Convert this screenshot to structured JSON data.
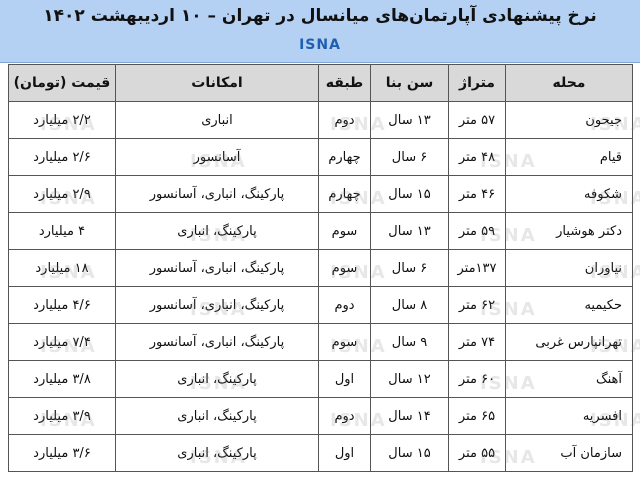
{
  "header": {
    "title": "نرخ پیشنهادی آپارتمان‌های میانسال در تهران – ۱۰ اردیبهشت ۱۴۰۲",
    "source": "ISNA"
  },
  "watermark": "ISNA",
  "table": {
    "columns": [
      "محله",
      "متراژ",
      "سن بنا",
      "طبقه",
      "امکانات",
      "قیمت (تومان)"
    ],
    "rows": [
      [
        "جیحون",
        "۵۷ متر",
        "۱۳ سال",
        "دوم",
        "انباری",
        "۲/۲ میلیارد"
      ],
      [
        "قیام",
        "۴۸ متر",
        "۶ سال",
        "چهارم",
        "آسانسور",
        "۲/۶ میلیارد"
      ],
      [
        "شکوفه",
        "۴۶ متر",
        "۱۵ سال",
        "چهارم",
        "پارکینگ، انباری، آسانسور",
        "۲/۹ میلیارد"
      ],
      [
        "دکتر هوشیار",
        "۵۹ متر",
        "۱۳ سال",
        "سوم",
        "پارکینگ، انباری",
        "۴ میلیارد"
      ],
      [
        "نیاوران",
        "۱۳۷متر",
        "۶ سال",
        "سوم",
        "پارکینگ، انباری، آسانسور",
        "۱۸ میلیارد"
      ],
      [
        "حکیمیه",
        "۶۲ متر",
        "۸ سال",
        "دوم",
        "پارکینگ، انباری، آسانسور",
        "۴/۶ میلیارد"
      ],
      [
        "تهرانپارس غربی",
        "۷۴ متر",
        "۹ سال",
        "سوم",
        "پارکینگ، انباری، آسانسور",
        "۷/۴ میلیارد"
      ],
      [
        "آهنگ",
        "۶۰ متر",
        "۱۲ سال",
        "اول",
        "پارکینگ، انباری",
        "۳/۸ میلیارد"
      ],
      [
        "افسریه",
        "۶۵ متر",
        "۱۴ سال",
        "دوم",
        "پارکینگ، انباری",
        "۳/۹ میلیارد"
      ],
      [
        "سازمان آب",
        "۵۵ متر",
        "۱۵ سال",
        "اول",
        "پارکینگ، انباری",
        "۳/۶ میلیارد"
      ]
    ]
  }
}
